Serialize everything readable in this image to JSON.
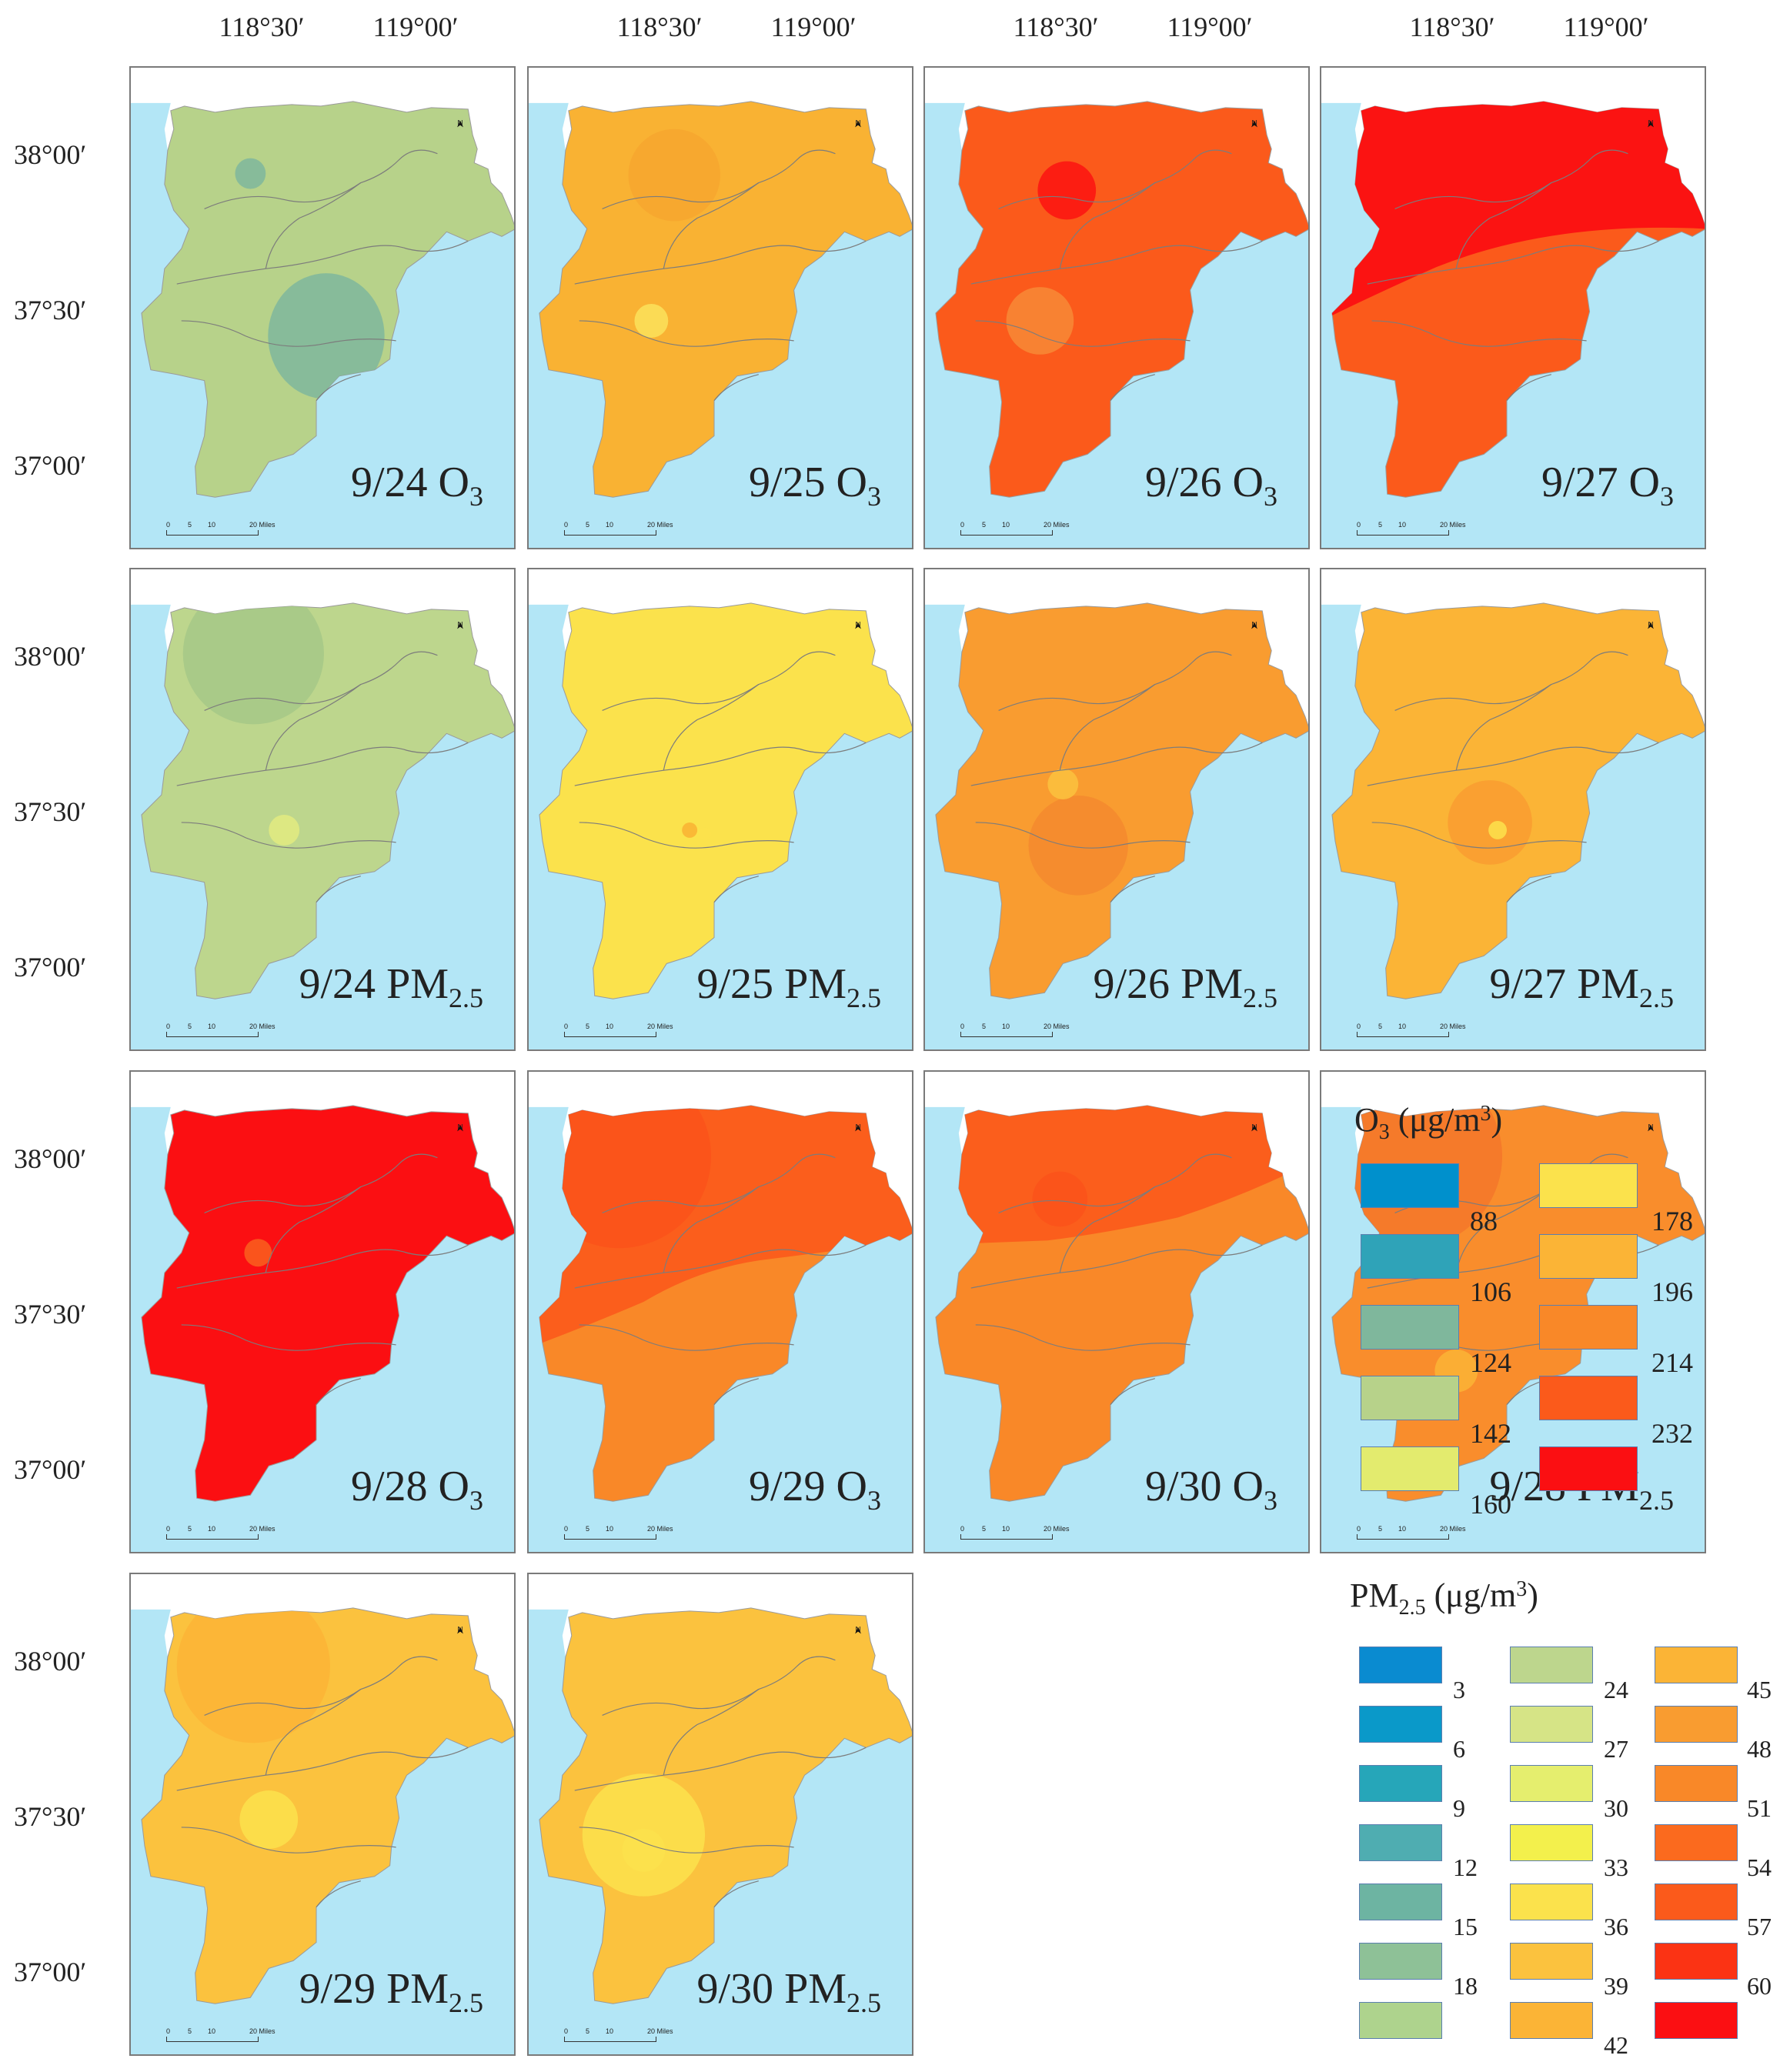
{
  "lon_labels": [
    "118°30′",
    "119°00′"
  ],
  "lat_labels": [
    "38°00′",
    "37°30′",
    "37°00′"
  ],
  "scale": {
    "ticks": [
      "0",
      "5",
      "10",
      "20 Miles"
    ]
  },
  "north_label": "N",
  "colors": {
    "sea": "#b3e6f6",
    "boundary": "#7c7c7c",
    "land_outline": "#9a9a9a"
  },
  "panels": [
    {
      "date": "9/24",
      "pollutant": "O",
      "sub": "3",
      "base": "#b7d28a",
      "spots": [
        "#7fb79c",
        "#7fb79c"
      ]
    },
    {
      "date": "9/25",
      "pollutant": "O",
      "sub": "3",
      "base": "#f9b233",
      "spots": [
        "#f7a62f",
        "#fbe25c"
      ]
    },
    {
      "date": "9/26",
      "pollutant": "O",
      "sub": "3",
      "base": "#fb5a1b",
      "spots": [
        "#fb1310",
        "#f78a36"
      ]
    },
    {
      "date": "9/27",
      "pollutant": "O",
      "sub": "3",
      "base": "#fb5a1b",
      "spots": [
        "#fb1312",
        "#fb1312"
      ]
    },
    {
      "date": "9/24",
      "pollutant": "PM",
      "sub": "2.5",
      "base": "#bdd68d",
      "spots": [
        "#a6c887",
        "#e3eb80"
      ]
    },
    {
      "date": "9/25",
      "pollutant": "PM",
      "sub": "2.5",
      "base": "#fbe24c",
      "spots": [
        "#f9b233",
        "#fbe24c"
      ]
    },
    {
      "date": "9/26",
      "pollutant": "PM",
      "sub": "2.5",
      "base": "#f99c30",
      "spots": [
        "#f58a2e",
        "#fbc23e"
      ]
    },
    {
      "date": "9/27",
      "pollutant": "PM",
      "sub": "2.5",
      "base": "#fbb436",
      "spots": [
        "#f99c30",
        "#fbe24c"
      ]
    },
    {
      "date": "9/28",
      "pollutant": "O",
      "sub": "3",
      "base": "#fb0f12",
      "spots": [
        "#f9601e",
        "#fb0f12"
      ]
    },
    {
      "date": "9/29",
      "pollutant": "O",
      "sub": "3",
      "base": "#f98828",
      "spots": [
        "#fb1310",
        "#fb5a1b"
      ]
    },
    {
      "date": "9/30",
      "pollutant": "O",
      "sub": "3",
      "base": "#f98828",
      "spots": [
        "#fb1310",
        "#fb5a1b"
      ]
    },
    {
      "date": "9/28",
      "pollutant": "PM",
      "sub": "2.5",
      "base": "#f98d2c",
      "spots": [
        "#f5772a",
        "#fbb436"
      ]
    },
    {
      "date": "9/29",
      "pollutant": "PM",
      "sub": "2.5",
      "base": "#fbc23e",
      "spots": [
        "#fbb436",
        "#fbe24c"
      ]
    },
    {
      "date": "9/30",
      "pollutant": "PM",
      "sub": "2.5",
      "base": "#fbc23e",
      "spots": [
        "#fbe24c",
        "#fbe24c"
      ]
    }
  ],
  "legend_o3": {
    "title_main": "O",
    "title_sub": "3",
    "title_unit_a": " (μg/m",
    "title_sup": "3",
    "title_unit_b": ")",
    "left_colors": [
      "#0090cc",
      "#2fa3b8",
      "#7fb79c",
      "#b7d28a",
      "#e3eb6e"
    ],
    "right_colors": [
      "#fbe24c",
      "#fbb436",
      "#f98828",
      "#fb5a1b",
      "#fb0f12"
    ],
    "left_values": [
      "88",
      "106",
      "124",
      "142",
      "160"
    ],
    "right_values": [
      "178",
      "196",
      "214",
      "232"
    ]
  },
  "legend_pm": {
    "title_main": "PM",
    "title_sub": "2.5",
    "title_unit_a": " (μg/m",
    "title_sup": "3",
    "title_unit_b": ")",
    "col1_colors": [
      "#0a8bd0",
      "#0a99c9",
      "#26a6b9",
      "#4fadb1",
      "#6db4a2",
      "#8ec197",
      "#aed38d"
    ],
    "col2_colors": [
      "#bdd68d",
      "#d6e486",
      "#e5ee6e",
      "#f3f04c",
      "#fbe24c",
      "#fbc23e",
      "#fbb436"
    ],
    "col3_colors": [
      "#fbb436",
      "#f99c30",
      "#f98828",
      "#fb6a1e",
      "#fb5a1b",
      "#fb3314",
      "#fb0f12"
    ],
    "col1_values": [
      "3",
      "6",
      "9",
      "12",
      "15",
      "18"
    ],
    "col2_values": [
      "24",
      "27",
      "30",
      "33",
      "36",
      "39",
      "42"
    ],
    "col3_values": [
      "45",
      "48",
      "51",
      "54",
      "57",
      "60"
    ]
  }
}
